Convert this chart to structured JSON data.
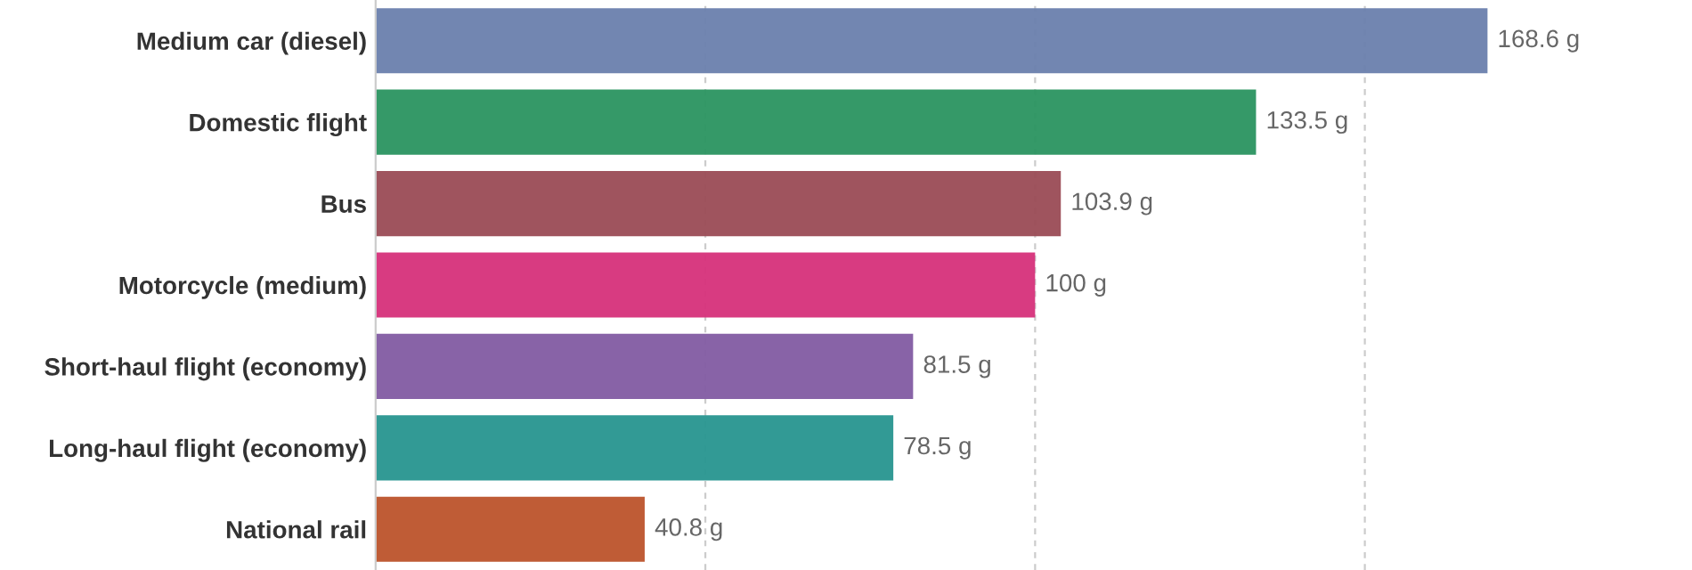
{
  "chart_data": {
    "type": "bar",
    "orientation": "horizontal",
    "categories": [
      "Medium car (diesel)",
      "Domestic flight",
      "Bus",
      "Motorcycle (medium)",
      "Short-haul flight (economy)",
      "Long-haul flight (economy)",
      "National rail"
    ],
    "values": [
      168.6,
      133.5,
      103.9,
      100,
      81.5,
      78.5,
      40.8
    ],
    "colors": [
      "#6a7fad",
      "#2a9460",
      "#9a4b55",
      "#d6307a",
      "#825ba2",
      "#27958f",
      "#bc532b"
    ],
    "value_labels": [
      "168.6 g",
      "133.5 g",
      "103.9 g",
      "100 g",
      "81.5 g",
      "78.5 g",
      "40.8 g"
    ],
    "xticks": [
      {
        "value": 50,
        "label": null
      },
      {
        "value": 100,
        "label": null
      },
      {
        "value": 150,
        "label": null
      }
    ],
    "grid": "x",
    "tick_labels": "y"
  }
}
